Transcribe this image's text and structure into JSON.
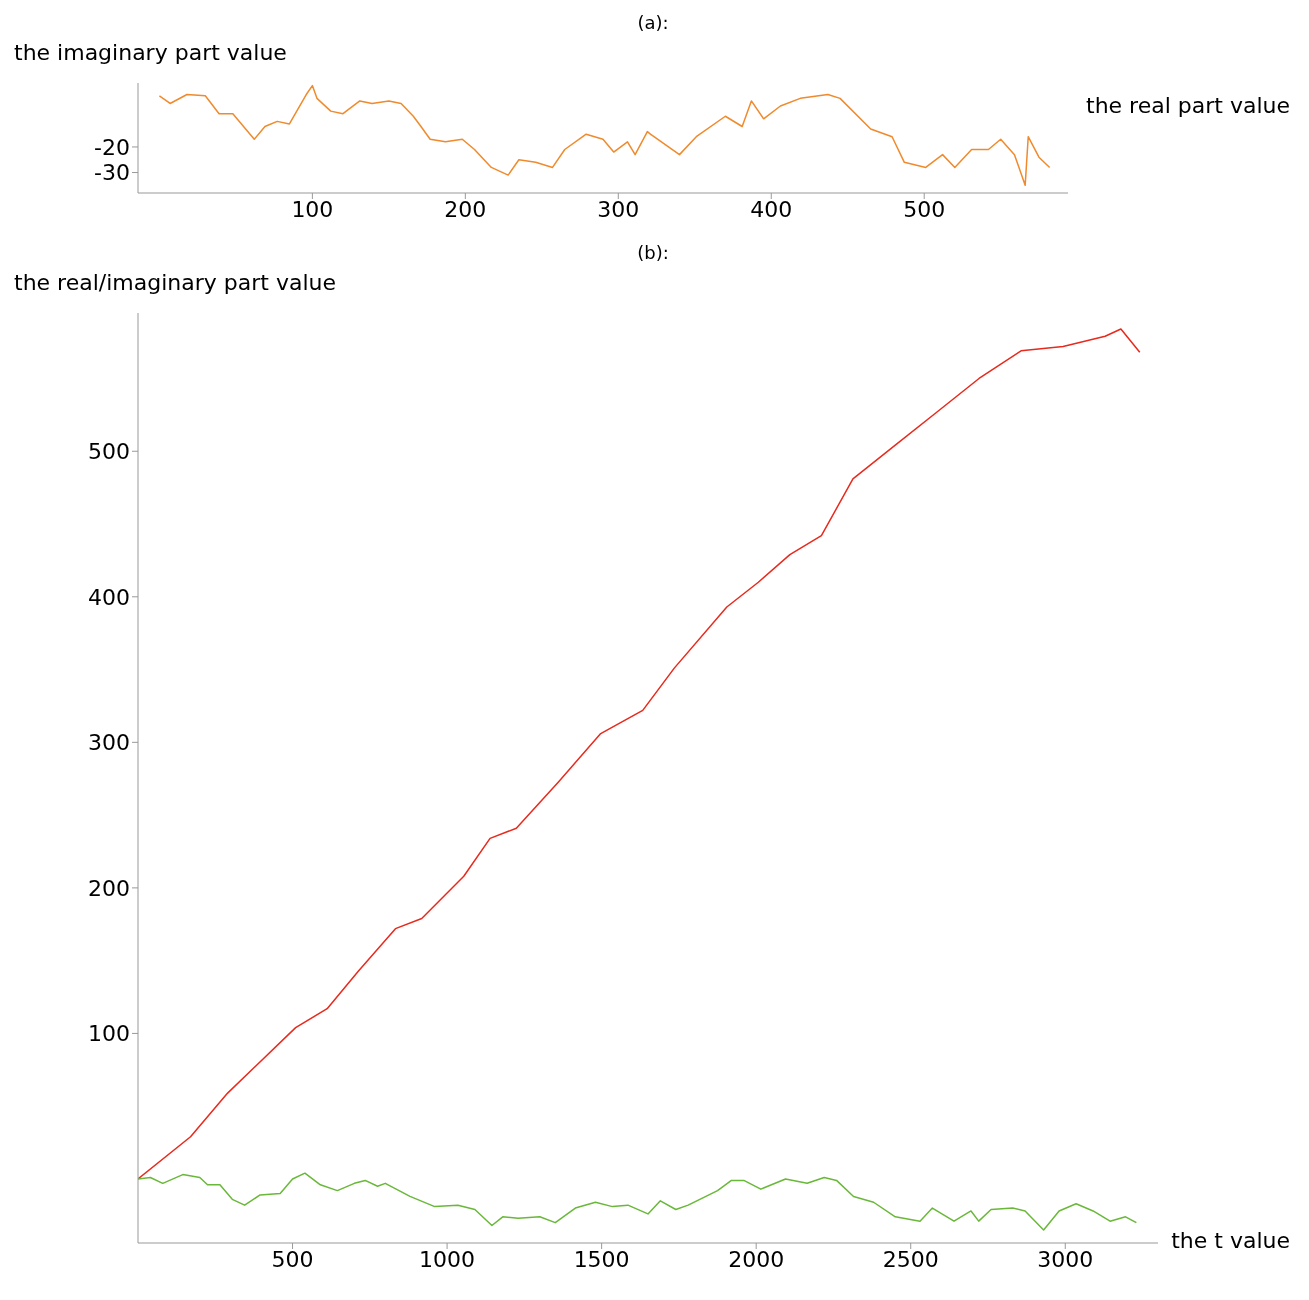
{
  "chart_data": [
    {
      "type": "line",
      "title": "(a):",
      "xlabel": "the real part value",
      "ylabel": "the imaginary part value",
      "xlim": [
        -14,
        594
      ],
      "xticks": [
        100,
        200,
        300,
        400,
        500
      ],
      "ylim": [
        -38,
        5
      ],
      "yticks": [
        -30,
        -20
      ],
      "series": [
        {
          "color": "#f08a2c",
          "x": [
            0,
            7,
            18,
            30,
            39,
            48,
            55,
            62,
            69,
            77,
            85,
            96,
            100,
            103,
            112,
            120,
            131,
            139,
            150,
            158,
            166,
            171,
            177,
            187,
            198,
            206,
            217,
            228,
            235,
            246,
            257,
            265,
            279,
            290,
            297,
            306,
            311,
            319,
            321,
            340,
            351,
            370,
            381,
            387,
            395,
            406,
            419,
            437,
            445,
            465,
            479,
            487,
            501,
            512,
            520,
            531,
            542,
            550,
            559,
            566,
            568,
            575,
            582
          ],
          "values": [
            0,
            -3,
            0.5,
            0,
            -7,
            -7,
            -12,
            -17,
            -12,
            -10,
            -11,
            0.5,
            4,
            -1,
            -6,
            -7,
            -2,
            -3,
            -2,
            -3,
            -8,
            -12,
            -17,
            -18,
            -17,
            -21,
            -28,
            -31,
            -25,
            -26,
            -28,
            -21,
            -15,
            -17,
            -22,
            -18,
            -23,
            -14,
            -15,
            -23,
            -16,
            -8,
            -12,
            -2,
            -9,
            -4,
            -1,
            0.5,
            -1,
            -13,
            -16,
            -26,
            -28,
            -23,
            -28,
            -21,
            -21,
            -17,
            -23,
            -35,
            -16,
            -24,
            -28
          ]
        }
      ]
    },
    {
      "type": "line",
      "title": "(b):",
      "xlabel": "the t value",
      "ylabel": "the real/imaginary part value",
      "xlim": [
        0,
        3300
      ],
      "xticks": [
        500,
        1000,
        1500,
        2000,
        2500,
        3000
      ],
      "ylim": [
        -44,
        595
      ],
      "yticks": [
        100,
        200,
        300,
        400,
        500
      ],
      "series": [
        {
          "color": "#e8291c",
          "x": [
            0,
            170,
            290,
            510,
            612,
            714,
            833,
            918,
            1054,
            1139,
            1224,
            1361,
            1497,
            1633,
            1735,
            1905,
            2007,
            2109,
            2211,
            2313,
            2449,
            2585,
            2721,
            2857,
            2993,
            3129,
            3180,
            3241
          ],
          "values": [
            0,
            29,
            59,
            104,
            117,
            143,
            172,
            179,
            208,
            234,
            241,
            273,
            306,
            322,
            351,
            393,
            410,
            429,
            442,
            481,
            504,
            527,
            550,
            569,
            572,
            579,
            584,
            568
          ]
        },
        {
          "color": "#6ab83a",
          "x": [
            0,
            40,
            80,
            145,
            200,
            225,
            265,
            305,
            345,
            395,
            460,
            500,
            540,
            590,
            645,
            700,
            735,
            775,
            800,
            880,
            960,
            1035,
            1090,
            1145,
            1180,
            1230,
            1300,
            1350,
            1415,
            1480,
            1535,
            1585,
            1650,
            1690,
            1740,
            1780,
            1875,
            1920,
            1960,
            2015,
            2095,
            2165,
            2220,
            2260,
            2315,
            2380,
            2450,
            2530,
            2570,
            2640,
            2695,
            2720,
            2760,
            2830,
            2870,
            2930,
            2980,
            3035,
            3090,
            3145,
            3195,
            3230
          ],
          "values": [
            0,
            1,
            -3,
            3,
            1,
            -4,
            -4,
            -14,
            -18,
            -11,
            -10,
            0,
            4,
            -4,
            -8,
            -3,
            -1,
            -5,
            -3,
            -12,
            -19,
            -18,
            -21,
            -32,
            -26,
            -27,
            -26,
            -30,
            -20,
            -16,
            -19,
            -18,
            -24,
            -15,
            -21,
            -18,
            -8,
            -1,
            -1,
            -7,
            0,
            -3,
            1,
            -1,
            -12,
            -16,
            -26,
            -29,
            -20,
            -29,
            -22,
            -29,
            -21,
            -20,
            -22,
            -35,
            -22,
            -17,
            -22,
            -29,
            -26,
            -30
          ]
        }
      ]
    }
  ]
}
